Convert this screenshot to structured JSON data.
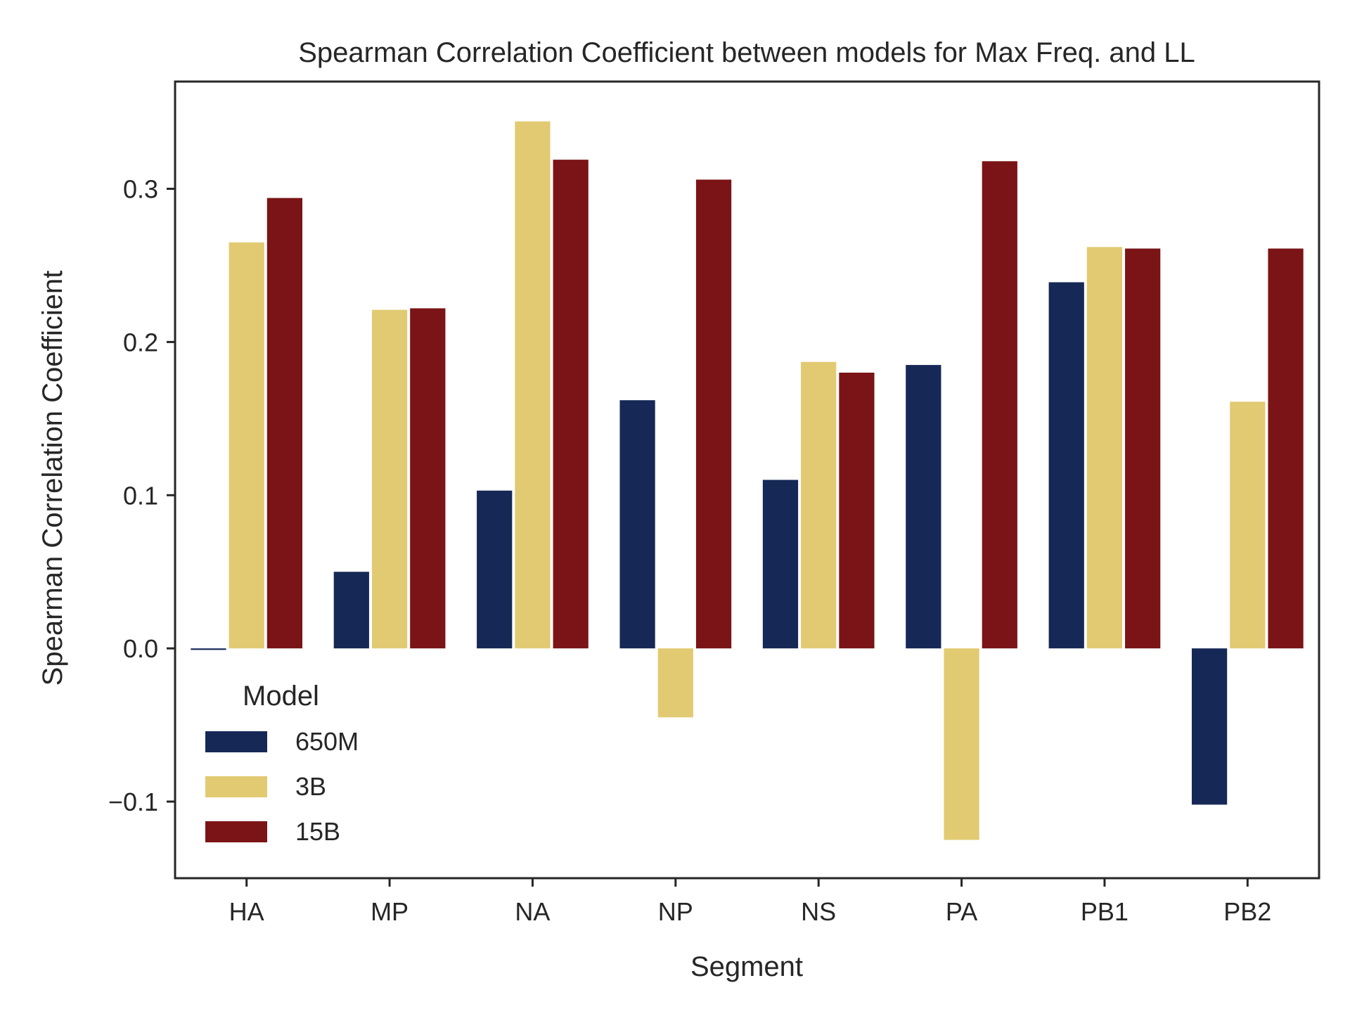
{
  "chart_data": {
    "type": "bar",
    "title": "Spearman Correlation Coefficient between models for Max Freq. and LL",
    "xlabel": "Segment",
    "ylabel": "Spearman Correlation Coefficient",
    "categories": [
      "HA",
      "MP",
      "NA",
      "NP",
      "NS",
      "PA",
      "PB1",
      "PB2"
    ],
    "ylim": [
      -0.15,
      0.37
    ],
    "yticks": [
      -0.1,
      0.0,
      0.1,
      0.2,
      0.3
    ],
    "ytick_labels": [
      "−0.1",
      "0.0",
      "0.1",
      "0.2",
      "0.3"
    ],
    "grid": false,
    "legend": {
      "title": "Model",
      "position": "lower-left"
    },
    "series": [
      {
        "name": "650M",
        "color": "#162856",
        "values": [
          -0.001,
          0.05,
          0.103,
          0.162,
          0.11,
          0.185,
          0.239,
          -0.102
        ]
      },
      {
        "name": "3B",
        "color": "#e2ca72",
        "values": [
          0.265,
          0.221,
          0.344,
          -0.045,
          0.187,
          -0.125,
          0.262,
          0.161
        ]
      },
      {
        "name": "15B",
        "color": "#7a1416",
        "values": [
          0.294,
          0.222,
          0.319,
          0.306,
          0.18,
          0.318,
          0.261,
          0.261
        ]
      }
    ]
  }
}
